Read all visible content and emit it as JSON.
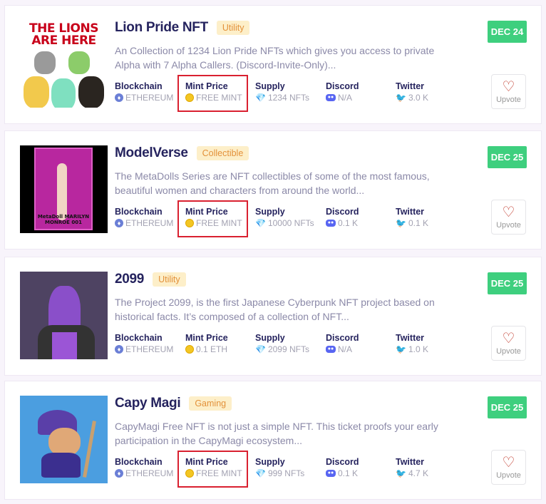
{
  "labels": {
    "blockchain": "Blockchain",
    "mint_price": "Mint Price",
    "supply": "Supply",
    "discord": "Discord",
    "twitter": "Twitter",
    "upvote": "Upvote"
  },
  "colors": {
    "date_badge": "#3ecf7e",
    "tag_bg": "#fdefc9",
    "tag_text": "#e3913a",
    "highlight": "#d92030",
    "title": "#25235e"
  },
  "projects": [
    {
      "title": "Lion Pride NFT",
      "tag": "Utility",
      "date": "DEC 24",
      "image_text": "THE LIONS ARE HERE",
      "description": "An Collection of 1234 Lion Pride NFTs which gives you access to private Alpha with 7 Alpha Callers. (Discord-Invite-Only)...",
      "blockchain": "ETHEREUM",
      "mint_price": "FREE MINT",
      "supply": "1234 NFTs",
      "discord": "N/A",
      "twitter": "3.0 K",
      "highlighted": true
    },
    {
      "title": "ModelVerse",
      "tag": "Collectible",
      "date": "DEC 25",
      "image_text": "MetaDoll MARILYN MONROE 001",
      "description": "The MetaDolls Series are NFT collectibles of some of the most famous, beautiful women and characters from around the world...",
      "blockchain": "ETHEREUM",
      "mint_price": "FREE MINT",
      "supply": "10000 NFTs",
      "discord": "0.1 K",
      "twitter": "0.1 K",
      "highlighted": true
    },
    {
      "title": "2099",
      "tag": "Utility",
      "date": "DEC 25",
      "description": "The Project 2099, is the first Japanese Cyberpunk NFT project based on historical facts. It’s composed of a collection of NFT...",
      "blockchain": "ETHEREUM",
      "mint_price": "0.1 ETH",
      "supply": "2099 NFTs",
      "discord": "N/A",
      "twitter": "1.0 K",
      "highlighted": false
    },
    {
      "title": "Capy Magi",
      "tag": "Gaming",
      "date": "DEC 25",
      "description": "CapyMagi Free NFT is not just a simple NFT. This ticket proofs your early participation in the CapyMagi ecosystem...",
      "blockchain": "ETHEREUM",
      "mint_price": "FREE MINT",
      "supply": "999 NFTs",
      "discord": "0.1 K",
      "twitter": "4.7 K",
      "highlighted": true
    }
  ]
}
